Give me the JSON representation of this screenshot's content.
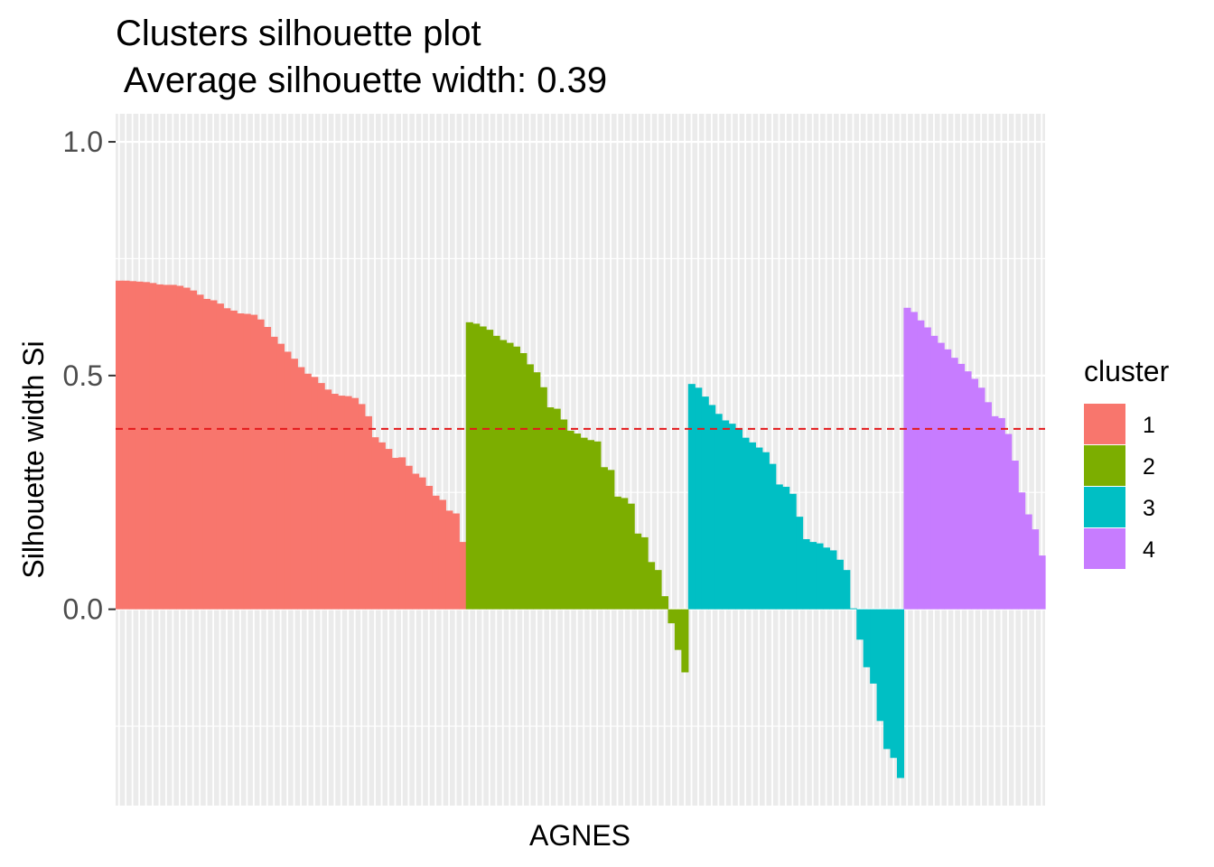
{
  "chart_data": {
    "type": "bar",
    "title_line1": "Clusters silhouette plot",
    "title_line2": " Average silhouette width: 0.39",
    "xlabel": "AGNES",
    "ylabel": "Silhouette width Si",
    "ylim": [
      -0.42,
      1.06
    ],
    "yticks": [
      {
        "value": 0.0,
        "label": "0.0"
      },
      {
        "value": 0.5,
        "label": "0.5"
      },
      {
        "value": 1.0,
        "label": "1.0"
      }
    ],
    "average_line": {
      "value": 0.386,
      "color": "#e41a1c",
      "style": "dashed"
    },
    "grid": true,
    "panel_background": "#ebebeb",
    "legend": {
      "title": "cluster",
      "position": "right"
    },
    "series": [
      {
        "name": "1",
        "color": "#F8766D",
        "values": [
          0.703,
          0.703,
          0.702,
          0.701,
          0.7,
          0.698,
          0.695,
          0.694,
          0.694,
          0.692,
          0.688,
          0.682,
          0.673,
          0.664,
          0.661,
          0.654,
          0.644,
          0.639,
          0.633,
          0.632,
          0.63,
          0.62,
          0.604,
          0.583,
          0.568,
          0.551,
          0.536,
          0.518,
          0.504,
          0.497,
          0.484,
          0.47,
          0.461,
          0.457,
          0.456,
          0.452,
          0.439,
          0.413,
          0.368,
          0.357,
          0.343,
          0.324,
          0.325,
          0.307,
          0.29,
          0.282,
          0.264,
          0.243,
          0.234,
          0.211,
          0.205,
          0.144
        ]
      },
      {
        "name": "2",
        "color": "#7CAE00",
        "values": [
          0.614,
          0.611,
          0.605,
          0.598,
          0.585,
          0.576,
          0.57,
          0.562,
          0.548,
          0.524,
          0.507,
          0.475,
          0.432,
          0.429,
          0.406,
          0.382,
          0.376,
          0.367,
          0.362,
          0.359,
          0.304,
          0.298,
          0.241,
          0.238,
          0.226,
          0.162,
          0.154,
          0.101,
          0.084,
          0.028,
          -0.03,
          -0.087,
          -0.135
        ]
      },
      {
        "name": "3",
        "color": "#00BFC4",
        "values": [
          0.482,
          0.474,
          0.455,
          0.437,
          0.418,
          0.404,
          0.397,
          0.385,
          0.367,
          0.357,
          0.346,
          0.336,
          0.311,
          0.267,
          0.262,
          0.247,
          0.198,
          0.15,
          0.144,
          0.141,
          0.132,
          0.126,
          0.106,
          0.084,
          0.002,
          -0.065,
          -0.124,
          -0.159,
          -0.239,
          -0.299,
          -0.318,
          -0.361
        ]
      },
      {
        "name": "4",
        "color": "#C77CFF",
        "values": [
          0.645,
          0.636,
          0.618,
          0.603,
          0.585,
          0.57,
          0.556,
          0.538,
          0.525,
          0.509,
          0.493,
          0.474,
          0.443,
          0.413,
          0.409,
          0.375,
          0.318,
          0.25,
          0.203,
          0.171,
          0.115
        ]
      }
    ]
  }
}
